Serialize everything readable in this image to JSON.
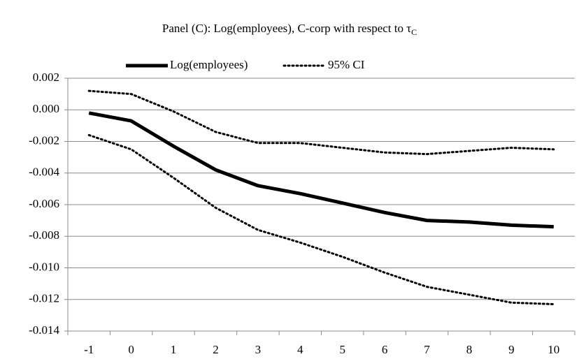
{
  "chart_data": {
    "type": "line",
    "title": "Panel (C): Log(employees), C-corp with respect to τ",
    "title_subscript": "C",
    "categories": [
      "-1",
      "0",
      "1",
      "2",
      "3",
      "4",
      "5",
      "6",
      "7",
      "8",
      "9",
      "10"
    ],
    "series": [
      {
        "name": "Log(employees)",
        "color": "#000000",
        "style": "solid",
        "values": [
          -0.0002,
          -0.0007,
          -0.0023,
          -0.0038,
          -0.0048,
          -0.0053,
          -0.0059,
          -0.0065,
          -0.007,
          -0.0071,
          -0.0073,
          -0.0074
        ]
      },
      {
        "name": "95% CI",
        "color": "#000000",
        "style": "dotted",
        "values": [
          0.0012,
          0.001,
          -0.0001,
          -0.0014,
          -0.0021,
          -0.0021,
          -0.0024,
          -0.0027,
          -0.0028,
          -0.0026,
          -0.0024,
          -0.0025
        ]
      },
      {
        "color": "#000000",
        "style": "dotted",
        "values": [
          -0.0016,
          -0.0025,
          -0.0043,
          -0.0062,
          -0.0076,
          -0.0084,
          -0.0093,
          -0.0103,
          -0.0112,
          -0.0117,
          -0.0122,
          -0.0123
        ]
      }
    ],
    "ylim": [
      -0.014,
      0.002
    ],
    "yticks": [
      0.002,
      {
        "value": 0,
        "label": "0.000"
      },
      -0.002,
      -0.004,
      -0.006,
      -0.008,
      {
        "value": -0.01,
        "label": "-0.010"
      },
      -0.012,
      -0.014
    ],
    "grid": true,
    "legend": "top"
  }
}
